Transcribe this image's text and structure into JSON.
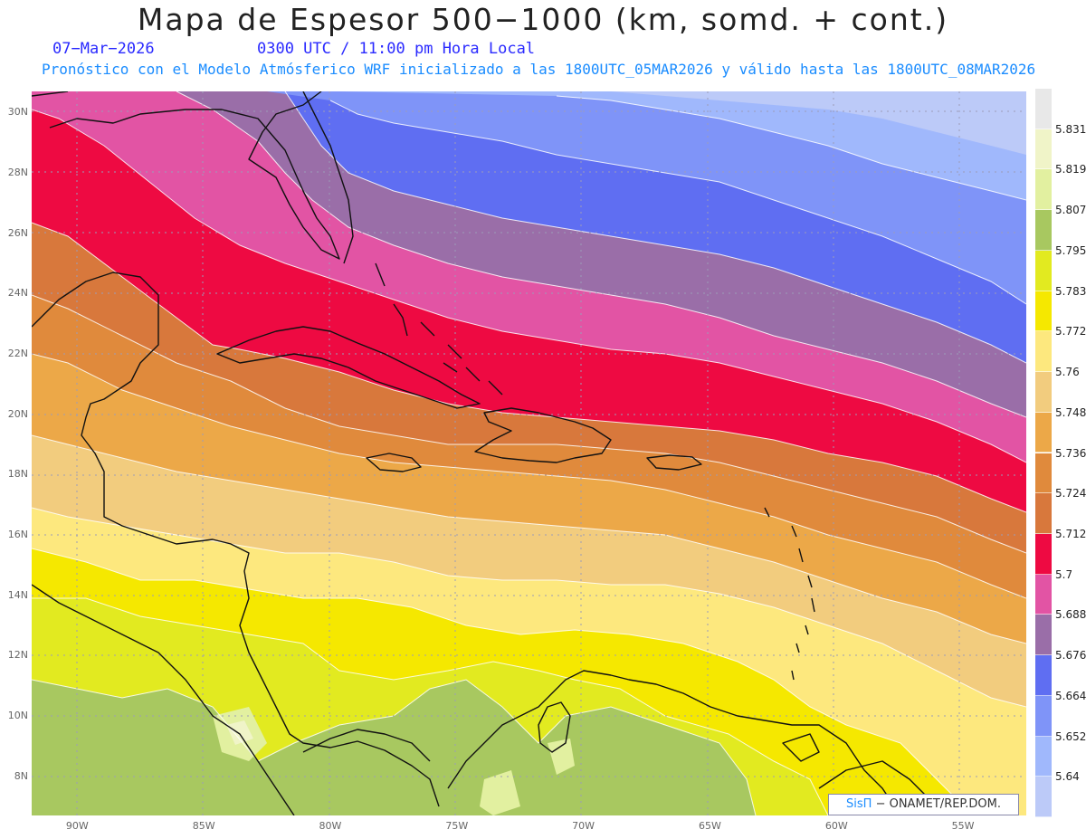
{
  "header": {
    "title": "Mapa de Espesor 500−1000 (km, somd. + cont.)",
    "date": "07−Mar−2026",
    "utc_time": "0300 UTC / 11:00 pm Hora Local",
    "forecast_info": "Pronóstico con el Modelo Atmósferico WRF inicializado a las 1800UTC_05MAR2026 y válido hasta las  1800UTC_08MAR2026"
  },
  "axes": {
    "lat_labels": [
      "30N",
      "28N",
      "26N",
      "24N",
      "22N",
      "20N",
      "18N",
      "16N",
      "14N",
      "12N",
      "10N",
      "8N"
    ],
    "lat_values": [
      30,
      28,
      26,
      24,
      22,
      20,
      18,
      16,
      14,
      12,
      10,
      8
    ],
    "lon_labels": [
      "90W",
      "85W",
      "80W",
      "75W",
      "70W",
      "65W",
      "60W",
      "55W"
    ],
    "lon_values": [
      -90,
      -85,
      -80,
      -75,
      -70,
      -65,
      -60,
      -55
    ],
    "lat_range": [
      6.7,
      30.7
    ],
    "lon_range": [
      -91.8,
      -52.5
    ]
  },
  "colorbar": {
    "levels": [
      "5.831",
      "5.819",
      "5.807",
      "5.795",
      "5.783",
      "5.772",
      "5.76",
      "5.748",
      "5.736",
      "5.724",
      "5.712",
      "5.7",
      "5.688",
      "5.676",
      "5.664",
      "5.652",
      "5.64"
    ],
    "colors": [
      "#e8e8e8",
      "#f0f4c8",
      "#e2f0a0",
      "#a8c860",
      "#e2ea20",
      "#f5e800",
      "#fde87e",
      "#f2cc7e",
      "#eca848",
      "#e08a3c",
      "#d8783c",
      "#ee0a42",
      "#e254a4",
      "#9a6ea8",
      "#5f6ef2",
      "#7f94f8",
      "#a0b8fc",
      "#bccaf8"
    ],
    "units": "km"
  },
  "credit": {
    "brand": "SisΠ",
    "org": "− ONAMET/REP.DOM."
  }
}
